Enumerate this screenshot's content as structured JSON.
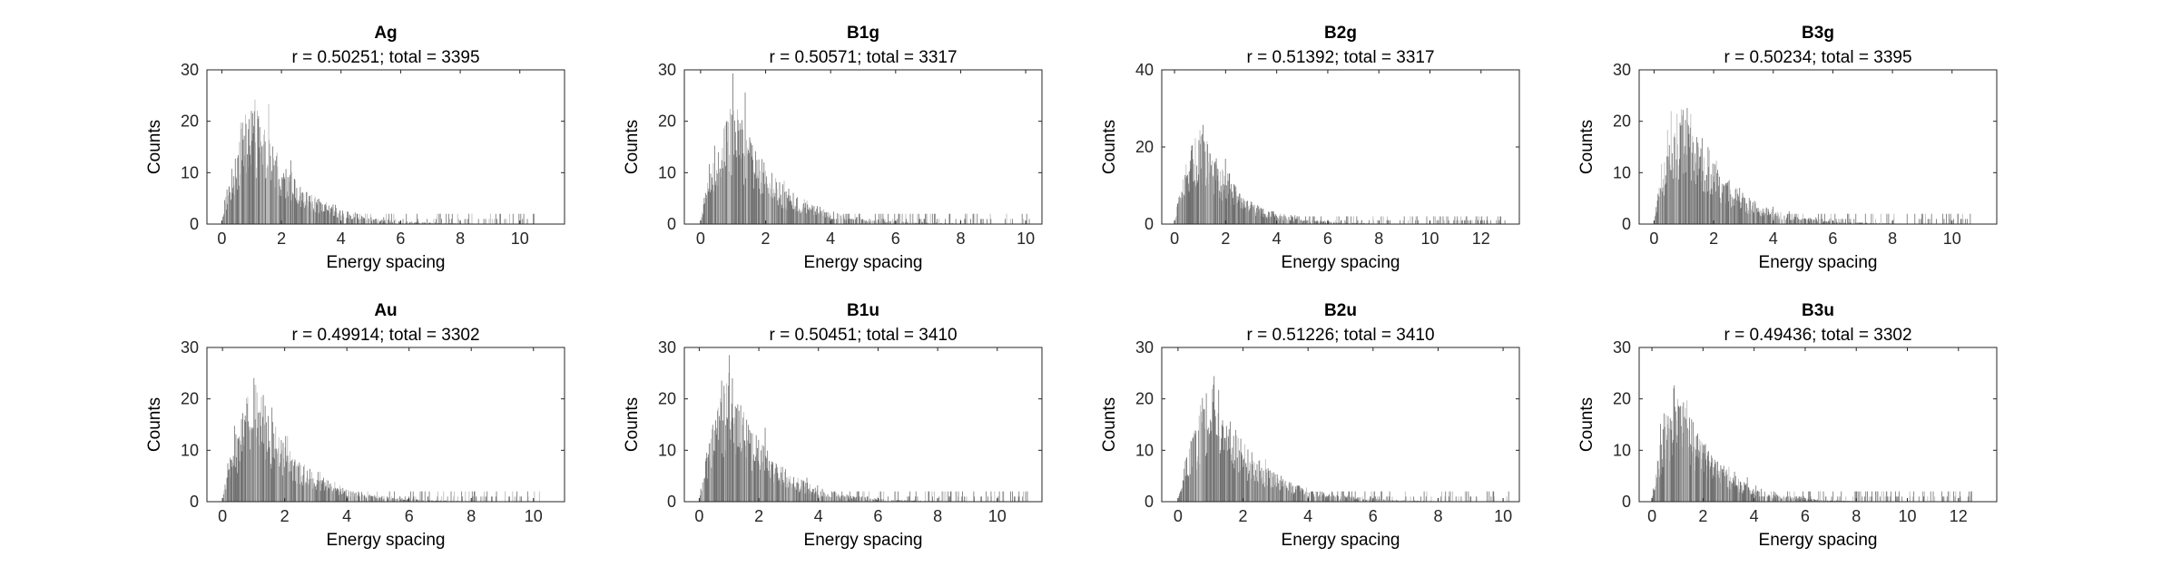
{
  "colors": {
    "bar_fill": "#6e6e6e",
    "bar_light": "#b5b5b5",
    "axis": "#262626",
    "background": "#ffffff"
  },
  "chart_data": [
    {
      "type": "bar",
      "title": "Ag",
      "subtitle": "r = 0.50251; total = 3395",
      "xlabel": "Energy spacing",
      "ylabel": "Counts",
      "xlim": [
        -0.5,
        11.5
      ],
      "ylim": [
        0,
        30
      ],
      "xticks": [
        0,
        2,
        4,
        6,
        8,
        10
      ],
      "yticks": [
        0,
        10,
        20,
        30
      ],
      "max_spacing": 10.6,
      "peak_spacing": 1.0,
      "peak_count": 18,
      "grid": false
    },
    {
      "type": "bar",
      "title": "B1g",
      "subtitle": "r = 0.50571; total = 3317",
      "xlabel": "Energy spacing",
      "ylabel": "Counts",
      "xlim": [
        -0.5,
        10.5
      ],
      "ylim": [
        0,
        30
      ],
      "xticks": [
        0,
        2,
        4,
        6,
        8,
        10
      ],
      "yticks": [
        0,
        10,
        20,
        30
      ],
      "max_spacing": 10.2,
      "peak_spacing": 1.0,
      "peak_count": 17,
      "grid": false
    },
    {
      "type": "bar",
      "title": "B2g",
      "subtitle": "r = 0.51392; total = 3317",
      "xlabel": "Energy spacing",
      "ylabel": "Counts",
      "xlim": [
        -0.5,
        13.5
      ],
      "ylim": [
        0,
        40
      ],
      "xticks": [
        0,
        2,
        4,
        6,
        8,
        10,
        12
      ],
      "yticks": [
        0,
        20,
        40
      ],
      "max_spacing": 13.0,
      "peak_spacing": 1.0,
      "peak_count": 19,
      "grid": false
    },
    {
      "type": "bar",
      "title": "B3g",
      "subtitle": "r = 0.50234; total = 3395",
      "xlabel": "Energy spacing",
      "ylabel": "Counts",
      "xlim": [
        -0.5,
        11.5
      ],
      "ylim": [
        0,
        30
      ],
      "xticks": [
        0,
        2,
        4,
        6,
        8,
        10
      ],
      "yticks": [
        0,
        10,
        20,
        30
      ],
      "max_spacing": 10.6,
      "peak_spacing": 1.0,
      "peak_count": 18,
      "grid": false
    },
    {
      "type": "bar",
      "title": "Au",
      "subtitle": "r = 0.49914; total = 3302",
      "xlabel": "Energy spacing",
      "ylabel": "Counts",
      "xlim": [
        -0.5,
        11.0
      ],
      "ylim": [
        0,
        30
      ],
      "xticks": [
        0,
        2,
        4,
        6,
        8,
        10
      ],
      "yticks": [
        0,
        10,
        20,
        30
      ],
      "max_spacing": 10.2,
      "peak_spacing": 1.0,
      "peak_count": 17,
      "grid": false
    },
    {
      "type": "bar",
      "title": "B1u",
      "subtitle": "r = 0.50451; total = 3410",
      "xlabel": "Energy spacing",
      "ylabel": "Counts",
      "xlim": [
        -0.5,
        11.5
      ],
      "ylim": [
        0,
        30
      ],
      "xticks": [
        0,
        2,
        4,
        6,
        8,
        10
      ],
      "yticks": [
        0,
        10,
        20,
        30
      ],
      "max_spacing": 11.0,
      "peak_spacing": 1.0,
      "peak_count": 18,
      "grid": false
    },
    {
      "type": "bar",
      "title": "B2u",
      "subtitle": "r = 0.51226; total = 3410",
      "xlabel": "Energy spacing",
      "ylabel": "Counts",
      "xlim": [
        -0.5,
        10.5
      ],
      "ylim": [
        0,
        30
      ],
      "xticks": [
        0,
        2,
        4,
        6,
        8,
        10
      ],
      "yticks": [
        0,
        10,
        20,
        30
      ],
      "max_spacing": 10.2,
      "peak_spacing": 1.0,
      "peak_count": 17,
      "grid": false
    },
    {
      "type": "bar",
      "title": "B3u",
      "subtitle": "r = 0.49436; total = 3302",
      "xlabel": "Energy spacing",
      "ylabel": "Counts",
      "xlim": [
        -0.5,
        13.5
      ],
      "ylim": [
        0,
        30
      ],
      "xticks": [
        0,
        2,
        4,
        6,
        8,
        10,
        12
      ],
      "yticks": [
        0,
        10,
        20,
        30
      ],
      "max_spacing": 12.6,
      "peak_spacing": 1.0,
      "peak_count": 18,
      "grid": false
    }
  ]
}
